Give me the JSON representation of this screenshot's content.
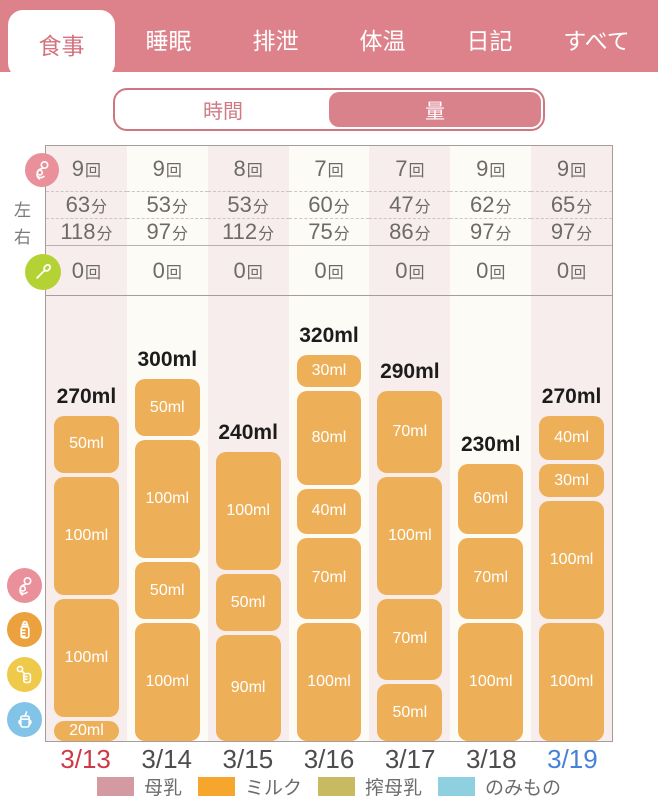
{
  "colors": {
    "header_bg": "#dd828b",
    "accent_pink": "#d9828c",
    "tab_selected_text": "#d4737f",
    "bar_fill": "#edb059",
    "column_stripe_pink": "#f8eded",
    "column_stripe_cream": "#fdfbf5"
  },
  "tabs": [
    {
      "label": "食事",
      "selected": true
    },
    {
      "label": "睡眠",
      "selected": false
    },
    {
      "label": "排泄",
      "selected": false
    },
    {
      "label": "体温",
      "selected": false
    },
    {
      "label": "日記",
      "selected": false
    },
    {
      "label": "すべて",
      "selected": false
    }
  ],
  "toggle": [
    {
      "label": "時間",
      "selected": false
    },
    {
      "label": "量",
      "selected": true
    }
  ],
  "stats": {
    "left_label": "左",
    "right_label": "右",
    "unit_times": "回",
    "unit_minutes": "分",
    "nursing_counts": [
      9,
      9,
      8,
      7,
      7,
      9,
      9
    ],
    "left_minutes": [
      63,
      53,
      53,
      60,
      47,
      62,
      65
    ],
    "right_minutes": [
      118,
      97,
      112,
      75,
      86,
      97,
      97
    ],
    "food_counts": [
      0,
      0,
      0,
      0,
      0,
      0,
      0
    ]
  },
  "chart_data": {
    "type": "bar",
    "stacked": true,
    "unit": "ml",
    "categories": [
      "3/13",
      "3/14",
      "3/15",
      "3/16",
      "3/17",
      "3/18",
      "3/19"
    ],
    "category_colors": [
      "#cd3a46",
      "#4d4d4d",
      "#4d4d4d",
      "#4d4d4d",
      "#4d4d4d",
      "#4d4d4d",
      "#4482d9"
    ],
    "series_name": "ミルク",
    "bar_color": "#edb059",
    "totals": [
      270,
      300,
      240,
      320,
      290,
      230,
      270
    ],
    "total_labels": [
      "270ml",
      "300ml",
      "240ml",
      "320ml",
      "290ml",
      "230ml",
      "270ml"
    ],
    "segments_top_to_bottom": [
      [
        50,
        100,
        100,
        20
      ],
      [
        50,
        100,
        50,
        100
      ],
      [
        100,
        50,
        90
      ],
      [
        30,
        80,
        40,
        70,
        100
      ],
      [
        70,
        100,
        70,
        50
      ],
      [
        60,
        70,
        100
      ],
      [
        40,
        30,
        100,
        100
      ]
    ],
    "ylim": [
      0,
      360
    ],
    "grid": false,
    "legend_position": "bottom"
  },
  "legend": [
    {
      "label": "母乳",
      "color": "#d49aa2"
    },
    {
      "label": "ミルク",
      "color": "#f6a62c"
    },
    {
      "label": "搾母乳",
      "color": "#c8ba60"
    },
    {
      "label": "のみもの",
      "color": "#8fd0e0"
    }
  ],
  "side_icons": {
    "table": [
      {
        "name": "breastfeeding-icon",
        "color": "#e9909b"
      },
      {
        "name": "spoon-icon",
        "color": "#b5d234"
      }
    ],
    "chart": [
      {
        "name": "breastfeeding-icon",
        "color": "#e9909b"
      },
      {
        "name": "bottle-icon",
        "color": "#eba23e"
      },
      {
        "name": "pump-bottle-icon",
        "color": "#efc94a"
      },
      {
        "name": "sippy-cup-icon",
        "color": "#82c4e8"
      }
    ]
  }
}
